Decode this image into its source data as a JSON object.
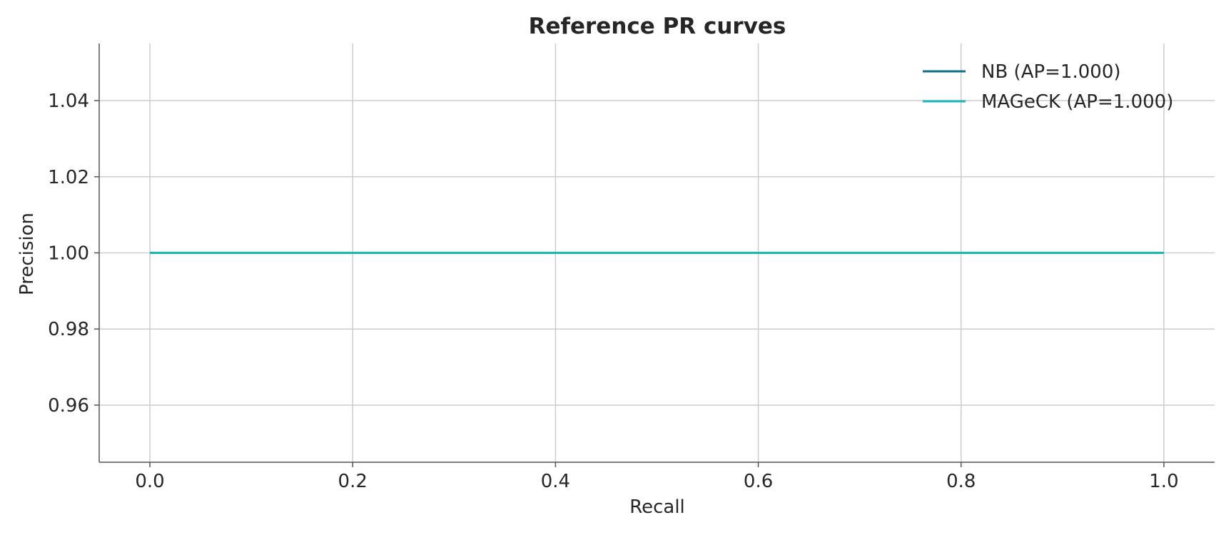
{
  "chart_data": {
    "type": "line",
    "title": "Reference PR curves",
    "xlabel": "Recall",
    "ylabel": "Precision",
    "xlim": [
      -0.05,
      1.05
    ],
    "ylim": [
      0.945,
      1.055
    ],
    "xticks": [
      0.0,
      0.2,
      0.4,
      0.6,
      0.8,
      1.0
    ],
    "xtick_labels": [
      "0.0",
      "0.2",
      "0.4",
      "0.6",
      "0.8",
      "1.0"
    ],
    "yticks": [
      0.96,
      0.98,
      1.0,
      1.02,
      1.04
    ],
    "ytick_labels": [
      "0.96",
      "0.98",
      "1.00",
      "1.02",
      "1.04"
    ],
    "grid": true,
    "legend_position": "top-right",
    "series": [
      {
        "name": "NB (AP=1.000)",
        "color": "#0e6e8c",
        "x": [
          0.0,
          1.0
        ],
        "y": [
          1.0,
          1.0
        ]
      },
      {
        "name": "MAGeCK (AP=1.000)",
        "color": "#17b8b8",
        "x": [
          0.0,
          1.0
        ],
        "y": [
          1.0,
          1.0
        ]
      }
    ]
  }
}
